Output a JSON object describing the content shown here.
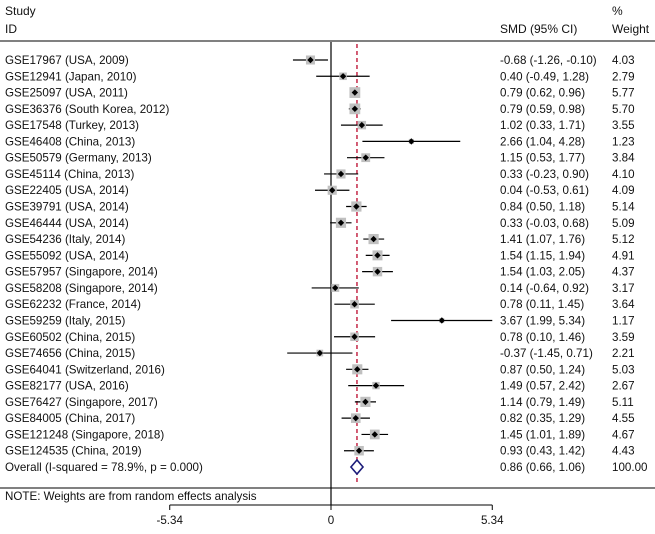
{
  "header": {
    "study_label": "Study",
    "id_label": "ID",
    "effect_label": "SMD (95% CI)",
    "weight_pct": "%",
    "weight_label": "Weight"
  },
  "note": "NOTE: Weights are from random effects analysis",
  "colors": {
    "box": "#c0c0c0",
    "point": "#000000",
    "overall_diamond": "#1c1c7a",
    "reference_line": "#c0183a",
    "axis": "#000000"
  },
  "chart_data": {
    "type": "forest",
    "xlim": [
      -5.34,
      5.34
    ],
    "xticks": [
      -5.34,
      0,
      5.34
    ],
    "xtick_labels": [
      "-5.34",
      "0",
      "5.34"
    ],
    "null_line": 0,
    "studies": [
      {
        "id": "GSE17967 (USA, 2009)",
        "smd": -0.68,
        "lo": -1.26,
        "hi": -0.1,
        "weight": 4.03,
        "ci_text": "-0.68 (-1.26, -0.10)",
        "weight_text": "4.03"
      },
      {
        "id": "GSE12941 (Japan, 2010)",
        "smd": 0.4,
        "lo": -0.49,
        "hi": 1.28,
        "weight": 2.79,
        "ci_text": "0.40 (-0.49, 1.28)",
        "weight_text": "2.79"
      },
      {
        "id": "GSE25097 (USA, 2011)",
        "smd": 0.79,
        "lo": 0.62,
        "hi": 0.96,
        "weight": 5.77,
        "ci_text": "0.79 (0.62, 0.96)",
        "weight_text": "5.77"
      },
      {
        "id": "GSE36376 (South Korea, 2012)",
        "smd": 0.79,
        "lo": 0.59,
        "hi": 0.98,
        "weight": 5.7,
        "ci_text": "0.79 (0.59, 0.98)",
        "weight_text": "5.70"
      },
      {
        "id": "GSE17548 (Turkey, 2013)",
        "smd": 1.02,
        "lo": 0.33,
        "hi": 1.71,
        "weight": 3.55,
        "ci_text": "1.02 (0.33, 1.71)",
        "weight_text": "3.55"
      },
      {
        "id": "GSE46408 (China, 2013)",
        "smd": 2.66,
        "lo": 1.04,
        "hi": 4.28,
        "weight": 1.23,
        "ci_text": "2.66 (1.04, 4.28)",
        "weight_text": "1.23"
      },
      {
        "id": "GSE50579 (Germany, 2013)",
        "smd": 1.15,
        "lo": 0.53,
        "hi": 1.77,
        "weight": 3.84,
        "ci_text": "1.15 (0.53, 1.77)",
        "weight_text": "3.84"
      },
      {
        "id": "GSE45114 (China, 2013)",
        "smd": 0.33,
        "lo": -0.23,
        "hi": 0.9,
        "weight": 4.1,
        "ci_text": "0.33 (-0.23, 0.90)",
        "weight_text": "4.10"
      },
      {
        "id": "GSE22405 (USA, 2014)",
        "smd": 0.04,
        "lo": -0.53,
        "hi": 0.61,
        "weight": 4.09,
        "ci_text": "0.04 (-0.53, 0.61)",
        "weight_text": "4.09"
      },
      {
        "id": "GSE39791 (USA, 2014)",
        "smd": 0.84,
        "lo": 0.5,
        "hi": 1.18,
        "weight": 5.14,
        "ci_text": "0.84 (0.50, 1.18)",
        "weight_text": "5.14"
      },
      {
        "id": "GSE46444 (USA, 2014)",
        "smd": 0.33,
        "lo": -0.03,
        "hi": 0.68,
        "weight": 5.09,
        "ci_text": "0.33 (-0.03, 0.68)",
        "weight_text": "5.09"
      },
      {
        "id": "GSE54236 (Italy, 2014)",
        "smd": 1.41,
        "lo": 1.07,
        "hi": 1.76,
        "weight": 5.12,
        "ci_text": "1.41 (1.07, 1.76)",
        "weight_text": "5.12"
      },
      {
        "id": "GSE55092 (USA, 2014)",
        "smd": 1.54,
        "lo": 1.15,
        "hi": 1.94,
        "weight": 4.91,
        "ci_text": "1.54 (1.15, 1.94)",
        "weight_text": "4.91"
      },
      {
        "id": "GSE57957 (Singapore, 2014)",
        "smd": 1.54,
        "lo": 1.03,
        "hi": 2.05,
        "weight": 4.37,
        "ci_text": "1.54 (1.03, 2.05)",
        "weight_text": "4.37"
      },
      {
        "id": "GSE58208 (Singapore, 2014)",
        "smd": 0.14,
        "lo": -0.64,
        "hi": 0.92,
        "weight": 3.17,
        "ci_text": "0.14 (-0.64, 0.92)",
        "weight_text": "3.17"
      },
      {
        "id": "GSE62232 (France, 2014)",
        "smd": 0.78,
        "lo": 0.11,
        "hi": 1.45,
        "weight": 3.64,
        "ci_text": "0.78 (0.11, 1.45)",
        "weight_text": "3.64"
      },
      {
        "id": "GSE59259 (Italy, 2015)",
        "smd": 3.67,
        "lo": 1.99,
        "hi": 5.34,
        "weight": 1.17,
        "ci_text": "3.67 (1.99, 5.34)",
        "weight_text": "1.17"
      },
      {
        "id": "GSE60502 (China, 2015)",
        "smd": 0.78,
        "lo": 0.1,
        "hi": 1.46,
        "weight": 3.59,
        "ci_text": "0.78 (0.10, 1.46)",
        "weight_text": "3.59"
      },
      {
        "id": "GSE74656 (China, 2015)",
        "smd": -0.37,
        "lo": -1.45,
        "hi": 0.71,
        "weight": 2.21,
        "ci_text": "-0.37 (-1.45, 0.71)",
        "weight_text": "2.21"
      },
      {
        "id": "GSE64041 (Switzerland, 2016)",
        "smd": 0.87,
        "lo": 0.5,
        "hi": 1.24,
        "weight": 5.03,
        "ci_text": "0.87 (0.50, 1.24)",
        "weight_text": "5.03"
      },
      {
        "id": "GSE82177 (USA, 2016)",
        "smd": 1.49,
        "lo": 0.57,
        "hi": 2.42,
        "weight": 2.67,
        "ci_text": "1.49 (0.57, 2.42)",
        "weight_text": "2.67"
      },
      {
        "id": "GSE76427 (Singapore, 2017)",
        "smd": 1.14,
        "lo": 0.79,
        "hi": 1.49,
        "weight": 5.11,
        "ci_text": "1.14 (0.79, 1.49)",
        "weight_text": "5.11"
      },
      {
        "id": "GSE84005 (China, 2017)",
        "smd": 0.82,
        "lo": 0.35,
        "hi": 1.29,
        "weight": 4.55,
        "ci_text": "0.82 (0.35, 1.29)",
        "weight_text": "4.55"
      },
      {
        "id": "GSE121248 (Singapore, 2018)",
        "smd": 1.45,
        "lo": 1.01,
        "hi": 1.89,
        "weight": 4.67,
        "ci_text": "1.45 (1.01, 1.89)",
        "weight_text": "4.67"
      },
      {
        "id": "GSE124535 (China, 2019)",
        "smd": 0.93,
        "lo": 0.43,
        "hi": 1.42,
        "weight": 4.43,
        "ci_text": "0.93 (0.43, 1.42)",
        "weight_text": "4.43"
      }
    ],
    "overall": {
      "label": "Overall  (I-squared = 78.9%, p = 0.000)",
      "smd": 0.86,
      "lo": 0.66,
      "hi": 1.06,
      "weight": 100.0,
      "ci_text": "0.86 (0.66, 1.06)",
      "weight_text": "100.00"
    }
  }
}
